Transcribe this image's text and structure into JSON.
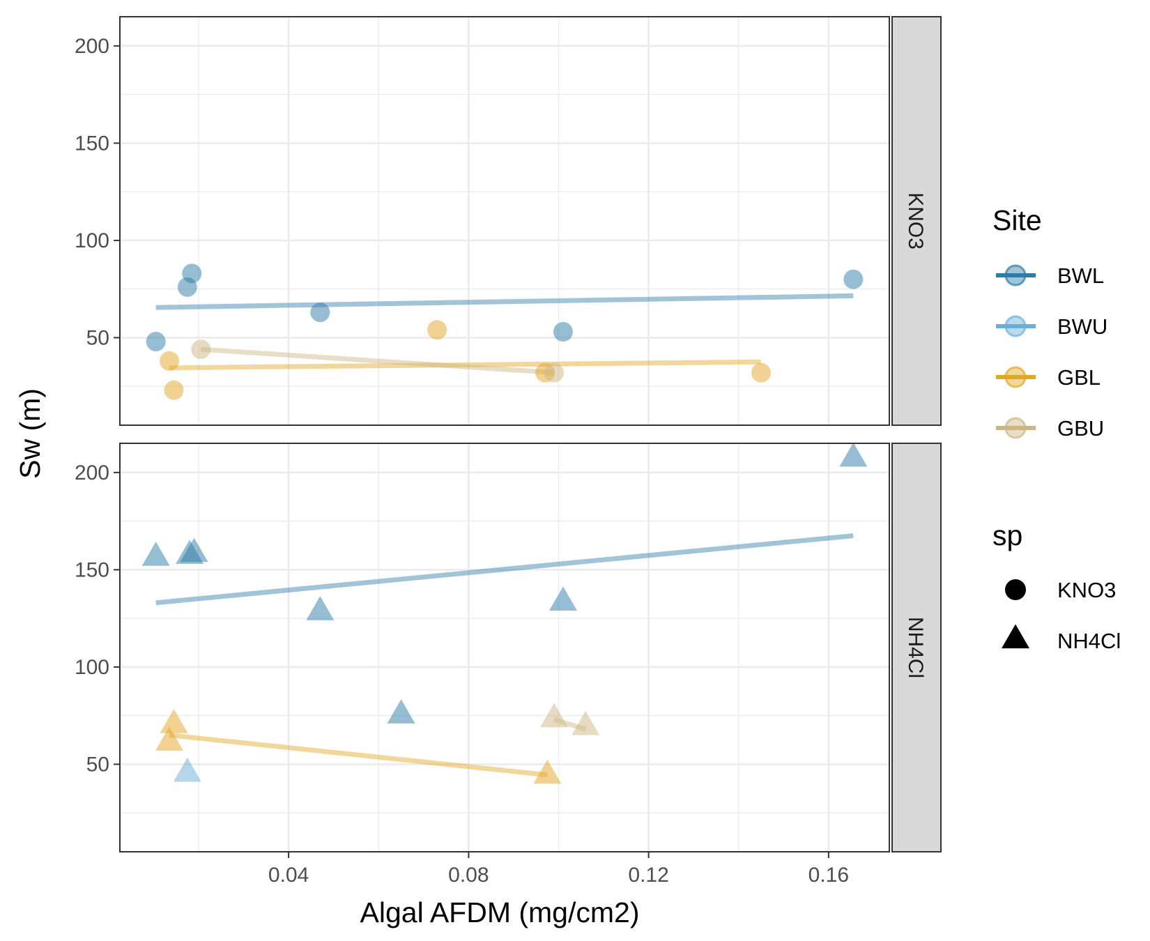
{
  "chart_data": {
    "type": "scatter",
    "xlabel": "Algal AFDM (mg/cm2)",
    "ylabel": "Sw (m)",
    "xlim": [
      0.0025,
      0.1735
    ],
    "ylim": [
      5,
      215
    ],
    "x_ticks": [
      0.04,
      0.08,
      0.12,
      0.16
    ],
    "x_tick_labels": [
      "0.04",
      "0.08",
      "0.12",
      "0.16"
    ],
    "y_ticks": [
      50,
      100,
      150,
      200
    ],
    "y_tick_labels": [
      "50",
      "100",
      "150",
      "200"
    ],
    "grid": true,
    "legend_position": "right",
    "facet_strip_position": "right",
    "colors": {
      "BWL": "#2E7CA8",
      "BWU": "#6BAED6",
      "GBL": "#E3A625",
      "GBU": "#CDB583"
    },
    "legends": [
      {
        "title": "Site",
        "kind": "color",
        "entries": [
          {
            "label": "BWL",
            "key": "BWL"
          },
          {
            "label": "BWU",
            "key": "BWU"
          },
          {
            "label": "GBL",
            "key": "GBL"
          },
          {
            "label": "GBU",
            "key": "GBU"
          }
        ]
      },
      {
        "title": "sp",
        "kind": "shape",
        "entries": [
          {
            "label": "KNO3",
            "shape": "circle"
          },
          {
            "label": "NH4Cl",
            "shape": "triangle"
          }
        ]
      }
    ],
    "panels": [
      {
        "label": "KNO3",
        "shape": "circle",
        "points": [
          {
            "site": "BWL",
            "x": 0.0105,
            "y": 48
          },
          {
            "site": "BWL",
            "x": 0.0175,
            "y": 76
          },
          {
            "site": "BWL",
            "x": 0.0185,
            "y": 83
          },
          {
            "site": "BWL",
            "x": 0.047,
            "y": 63
          },
          {
            "site": "BWL",
            "x": 0.101,
            "y": 53
          },
          {
            "site": "BWL",
            "x": 0.1655,
            "y": 80
          },
          {
            "site": "GBL",
            "x": 0.0135,
            "y": 38
          },
          {
            "site": "GBL",
            "x": 0.0145,
            "y": 23
          },
          {
            "site": "GBL",
            "x": 0.073,
            "y": 54
          },
          {
            "site": "GBL",
            "x": 0.097,
            "y": 32
          },
          {
            "site": "GBL",
            "x": 0.145,
            "y": 32
          },
          {
            "site": "GBU",
            "x": 0.0205,
            "y": 44
          },
          {
            "site": "GBU",
            "x": 0.099,
            "y": 32
          }
        ],
        "fits": [
          {
            "site": "BWL",
            "x": [
              0.0105,
              0.1655
            ],
            "y": [
              65.5,
              71.5
            ]
          },
          {
            "site": "GBL",
            "x": [
              0.0135,
              0.145
            ],
            "y": [
              34.5,
              37.5
            ]
          },
          {
            "site": "GBU",
            "x": [
              0.0205,
              0.099
            ],
            "y": [
              44,
              32
            ]
          }
        ]
      },
      {
        "label": "NH4Cl",
        "shape": "triangle",
        "points": [
          {
            "site": "BWL",
            "x": 0.0105,
            "y": 156
          },
          {
            "site": "BWL",
            "x": 0.018,
            "y": 157
          },
          {
            "site": "BWL",
            "x": 0.019,
            "y": 158
          },
          {
            "site": "BWL",
            "x": 0.047,
            "y": 128
          },
          {
            "site": "BWL",
            "x": 0.065,
            "y": 75
          },
          {
            "site": "BWL",
            "x": 0.101,
            "y": 133
          },
          {
            "site": "BWL",
            "x": 0.1655,
            "y": 207
          },
          {
            "site": "BWU",
            "x": 0.0175,
            "y": 45
          },
          {
            "site": "GBL",
            "x": 0.0135,
            "y": 61
          },
          {
            "site": "GBL",
            "x": 0.0145,
            "y": 70
          },
          {
            "site": "GBL",
            "x": 0.0975,
            "y": 44
          },
          {
            "site": "GBU",
            "x": 0.099,
            "y": 73
          },
          {
            "site": "GBU",
            "x": 0.106,
            "y": 69
          }
        ],
        "fits": [
          {
            "site": "BWL",
            "x": [
              0.0105,
              0.1655
            ],
            "y": [
              133,
              167.5
            ]
          },
          {
            "site": "GBL",
            "x": [
              0.0135,
              0.0975
            ],
            "y": [
              65,
              44.5
            ]
          },
          {
            "site": "GBU",
            "x": [
              0.099,
              0.106
            ],
            "y": [
              73,
              68
            ]
          }
        ]
      }
    ]
  }
}
